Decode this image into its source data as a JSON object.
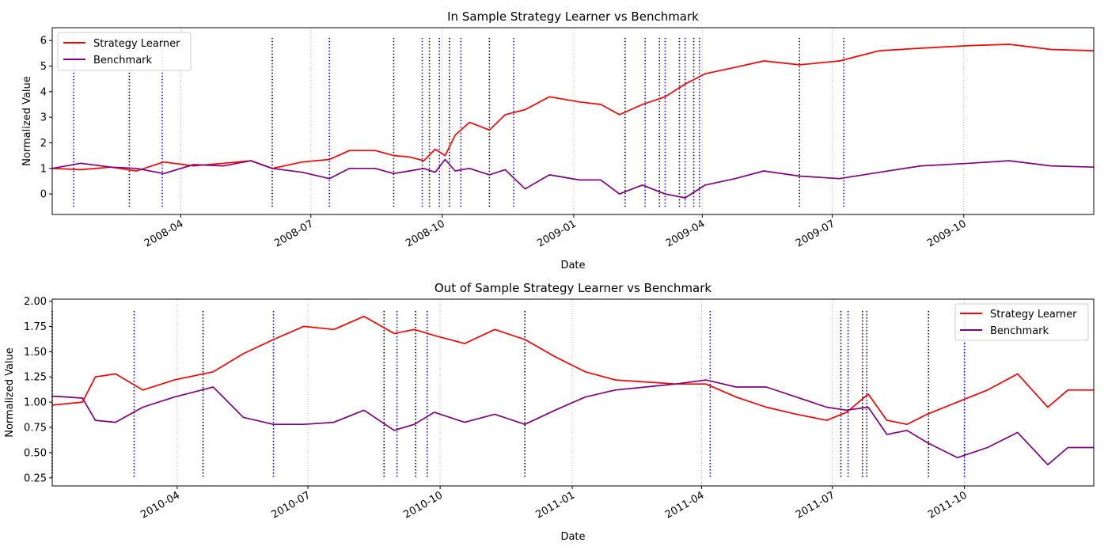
{
  "chart_data": [
    {
      "type": "line",
      "title": "In Sample Strategy Learner vs Benchmark",
      "xlabel": "Date",
      "ylabel": "Normalized Value",
      "xlim": [
        "2008-01-02",
        "2009-12-31"
      ],
      "ylim": [
        -0.8,
        6.5
      ],
      "yticks": [
        0,
        1,
        2,
        3,
        4,
        5,
        6
      ],
      "xticks": [
        {
          "date": "2008-04-01",
          "label": "2008-04"
        },
        {
          "date": "2008-07-01",
          "label": "2008-07"
        },
        {
          "date": "2008-10-01",
          "label": "2008-10"
        },
        {
          "date": "2009-01-01",
          "label": "2009-01"
        },
        {
          "date": "2009-04-01",
          "label": "2009-04"
        },
        {
          "date": "2009-07-01",
          "label": "2009-07"
        },
        {
          "date": "2009-10-01",
          "label": "2009-10"
        }
      ],
      "grid": "vertical dotted",
      "legend_position": "upper-left",
      "series": [
        {
          "name": "Strategy Learner",
          "color": "#ff0000",
          "points": [
            [
              "2008-01-02",
              1.0
            ],
            [
              "2008-01-22",
              0.95
            ],
            [
              "2008-02-12",
              1.05
            ],
            [
              "2008-03-01",
              0.9
            ],
            [
              "2008-03-20",
              1.25
            ],
            [
              "2008-04-10",
              1.1
            ],
            [
              "2008-05-01",
              1.2
            ],
            [
              "2008-05-20",
              1.3
            ],
            [
              "2008-06-04",
              1.0
            ],
            [
              "2008-06-25",
              1.25
            ],
            [
              "2008-07-14",
              1.35
            ],
            [
              "2008-07-28",
              1.7
            ],
            [
              "2008-08-15",
              1.7
            ],
            [
              "2008-08-28",
              1.5
            ],
            [
              "2008-09-08",
              1.45
            ],
            [
              "2008-09-18",
              1.3
            ],
            [
              "2008-09-26",
              1.75
            ],
            [
              "2008-10-03",
              1.5
            ],
            [
              "2008-10-10",
              2.3
            ],
            [
              "2008-10-20",
              2.8
            ],
            [
              "2008-11-03",
              2.5
            ],
            [
              "2008-11-14",
              3.1
            ],
            [
              "2008-11-28",
              3.3
            ],
            [
              "2008-12-15",
              3.8
            ],
            [
              "2009-01-05",
              3.6
            ],
            [
              "2009-01-20",
              3.5
            ],
            [
              "2009-02-02",
              3.1
            ],
            [
              "2009-02-18",
              3.5
            ],
            [
              "2009-03-06",
              3.8
            ],
            [
              "2009-03-20",
              4.3
            ],
            [
              "2009-04-03",
              4.7
            ],
            [
              "2009-04-24",
              4.95
            ],
            [
              "2009-05-14",
              5.2
            ],
            [
              "2009-06-08",
              5.05
            ],
            [
              "2009-07-06",
              5.2
            ],
            [
              "2009-08-03",
              5.6
            ],
            [
              "2009-09-01",
              5.7
            ],
            [
              "2009-10-05",
              5.8
            ],
            [
              "2009-11-02",
              5.85
            ],
            [
              "2009-12-01",
              5.65
            ],
            [
              "2009-12-31",
              5.6
            ]
          ]
        },
        {
          "name": "Benchmark",
          "color": "#800080",
          "points": [
            [
              "2008-01-02",
              1.0
            ],
            [
              "2008-01-22",
              1.2
            ],
            [
              "2008-02-12",
              1.05
            ],
            [
              "2008-03-01",
              1.0
            ],
            [
              "2008-03-20",
              0.8
            ],
            [
              "2008-04-10",
              1.15
            ],
            [
              "2008-05-01",
              1.1
            ],
            [
              "2008-05-20",
              1.3
            ],
            [
              "2008-06-04",
              1.0
            ],
            [
              "2008-06-25",
              0.85
            ],
            [
              "2008-07-14",
              0.6
            ],
            [
              "2008-07-28",
              1.0
            ],
            [
              "2008-08-15",
              1.0
            ],
            [
              "2008-08-28",
              0.8
            ],
            [
              "2008-09-08",
              0.9
            ],
            [
              "2008-09-18",
              1.0
            ],
            [
              "2008-09-26",
              0.85
            ],
            [
              "2008-10-03",
              1.35
            ],
            [
              "2008-10-10",
              0.9
            ],
            [
              "2008-10-20",
              1.0
            ],
            [
              "2008-11-03",
              0.75
            ],
            [
              "2008-11-14",
              0.95
            ],
            [
              "2008-11-28",
              0.2
            ],
            [
              "2008-12-15",
              0.75
            ],
            [
              "2009-01-05",
              0.55
            ],
            [
              "2009-01-20",
              0.55
            ],
            [
              "2009-02-02",
              0.0
            ],
            [
              "2009-02-18",
              0.35
            ],
            [
              "2009-03-06",
              0.0
            ],
            [
              "2009-03-20",
              -0.15
            ],
            [
              "2009-04-03",
              0.35
            ],
            [
              "2009-04-24",
              0.6
            ],
            [
              "2009-05-14",
              0.9
            ],
            [
              "2009-06-08",
              0.7
            ],
            [
              "2009-07-06",
              0.6
            ],
            [
              "2009-08-03",
              0.85
            ],
            [
              "2009-09-01",
              1.1
            ],
            [
              "2009-10-05",
              1.2
            ],
            [
              "2009-11-02",
              1.3
            ],
            [
              "2009-12-01",
              1.1
            ],
            [
              "2009-12-31",
              1.05
            ]
          ]
        }
      ],
      "vlines": {
        "black_dotted": [
          "2008-02-25",
          "2008-06-04",
          "2008-08-28",
          "2008-09-22",
          "2008-10-06",
          "2008-11-03",
          "2009-02-06",
          "2009-03-02",
          "2009-03-16",
          "2009-03-26",
          "2009-06-08"
        ],
        "blue_dotted": [
          "2008-01-17",
          "2008-03-19",
          "2008-07-14",
          "2008-09-17",
          "2008-09-29",
          "2008-10-14",
          "2008-11-20",
          "2009-02-20",
          "2009-03-06",
          "2009-03-20",
          "2009-03-30",
          "2009-07-09"
        ],
        "ymin": -0.5,
        "ymax": 6.1
      }
    },
    {
      "type": "line",
      "title": "Out of Sample Strategy Learner vs Benchmark",
      "xlabel": "Date",
      "ylabel": "Normalized Value",
      "xlim": [
        "2010-01-04",
        "2011-12-30"
      ],
      "ylim": [
        0.17,
        2.02
      ],
      "yticks": [
        0.25,
        0.5,
        0.75,
        1.0,
        1.25,
        1.5,
        1.75,
        2.0
      ],
      "ytick_labels": [
        "0.25",
        "0.50",
        "0.75",
        "1.00",
        "1.25",
        "1.50",
        "1.75",
        "2.00"
      ],
      "xticks": [
        {
          "date": "2010-04-01",
          "label": "2010-04"
        },
        {
          "date": "2010-07-01",
          "label": "2010-07"
        },
        {
          "date": "2010-10-01",
          "label": "2010-10"
        },
        {
          "date": "2011-01-01",
          "label": "2011-01"
        },
        {
          "date": "2011-04-01",
          "label": "2011-04"
        },
        {
          "date": "2011-07-01",
          "label": "2011-07"
        },
        {
          "date": "2011-10-01",
          "label": "2011-10"
        }
      ],
      "grid": "vertical dotted",
      "legend_position": "upper-right",
      "series": [
        {
          "name": "Strategy Learner",
          "color": "#ff0000",
          "points": [
            [
              "2010-01-04",
              0.97
            ],
            [
              "2010-01-25",
              1.0
            ],
            [
              "2010-02-03",
              1.25
            ],
            [
              "2010-02-17",
              1.28
            ],
            [
              "2010-03-08",
              1.12
            ],
            [
              "2010-03-30",
              1.22
            ],
            [
              "2010-04-26",
              1.3
            ],
            [
              "2010-05-17",
              1.48
            ],
            [
              "2010-06-07",
              1.62
            ],
            [
              "2010-06-28",
              1.75
            ],
            [
              "2010-07-19",
              1.72
            ],
            [
              "2010-08-09",
              1.85
            ],
            [
              "2010-08-30",
              1.68
            ],
            [
              "2010-09-13",
              1.72
            ],
            [
              "2010-09-27",
              1.66
            ],
            [
              "2010-10-18",
              1.58
            ],
            [
              "2010-11-08",
              1.72
            ],
            [
              "2010-11-29",
              1.62
            ],
            [
              "2010-12-20",
              1.45
            ],
            [
              "2011-01-10",
              1.3
            ],
            [
              "2011-01-31",
              1.22
            ],
            [
              "2011-02-21",
              1.2
            ],
            [
              "2011-03-14",
              1.18
            ],
            [
              "2011-04-04",
              1.18
            ],
            [
              "2011-04-25",
              1.05
            ],
            [
              "2011-05-16",
              0.95
            ],
            [
              "2011-06-06",
              0.88
            ],
            [
              "2011-06-27",
              0.82
            ],
            [
              "2011-07-11",
              0.9
            ],
            [
              "2011-07-26",
              1.08
            ],
            [
              "2011-08-08",
              0.82
            ],
            [
              "2011-08-22",
              0.78
            ],
            [
              "2011-09-05",
              0.88
            ],
            [
              "2011-09-26",
              1.0
            ],
            [
              "2011-10-17",
              1.12
            ],
            [
              "2011-11-07",
              1.28
            ],
            [
              "2011-11-28",
              0.95
            ],
            [
              "2011-12-12",
              1.12
            ],
            [
              "2011-12-30",
              1.12
            ]
          ]
        },
        {
          "name": "Benchmark",
          "color": "#800080",
          "points": [
            [
              "2010-01-04",
              1.06
            ],
            [
              "2010-01-25",
              1.04
            ],
            [
              "2010-02-03",
              0.82
            ],
            [
              "2010-02-17",
              0.8
            ],
            [
              "2010-03-08",
              0.95
            ],
            [
              "2010-03-30",
              1.05
            ],
            [
              "2010-04-26",
              1.15
            ],
            [
              "2010-05-17",
              0.85
            ],
            [
              "2010-06-07",
              0.78
            ],
            [
              "2010-06-28",
              0.78
            ],
            [
              "2010-07-19",
              0.8
            ],
            [
              "2010-08-09",
              0.92
            ],
            [
              "2010-08-30",
              0.72
            ],
            [
              "2010-09-13",
              0.78
            ],
            [
              "2010-09-27",
              0.9
            ],
            [
              "2010-10-18",
              0.8
            ],
            [
              "2010-11-08",
              0.88
            ],
            [
              "2010-11-29",
              0.78
            ],
            [
              "2010-12-20",
              0.92
            ],
            [
              "2011-01-10",
              1.05
            ],
            [
              "2011-01-31",
              1.12
            ],
            [
              "2011-02-21",
              1.15
            ],
            [
              "2011-03-14",
              1.18
            ],
            [
              "2011-04-04",
              1.22
            ],
            [
              "2011-04-25",
              1.15
            ],
            [
              "2011-05-16",
              1.15
            ],
            [
              "2011-06-06",
              1.05
            ],
            [
              "2011-06-27",
              0.95
            ],
            [
              "2011-07-11",
              0.92
            ],
            [
              "2011-07-26",
              0.95
            ],
            [
              "2011-08-08",
              0.68
            ],
            [
              "2011-08-22",
              0.72
            ],
            [
              "2011-09-05",
              0.6
            ],
            [
              "2011-09-26",
              0.45
            ],
            [
              "2011-10-17",
              0.55
            ],
            [
              "2011-11-07",
              0.7
            ],
            [
              "2011-11-28",
              0.38
            ],
            [
              "2011-12-12",
              0.55
            ],
            [
              "2011-12-30",
              0.55
            ]
          ]
        }
      ],
      "vlines": {
        "black_dotted": [
          "2010-01-04",
          "2010-04-19",
          "2010-08-23",
          "2010-09-14",
          "2010-11-29",
          "2011-07-07",
          "2011-07-22",
          "2011-09-06"
        ],
        "blue_dotted": [
          "2010-03-02",
          "2010-06-07",
          "2010-09-01",
          "2010-09-22",
          "2011-04-07",
          "2011-07-12",
          "2011-07-25",
          "2011-10-01"
        ],
        "ymin": 0.26,
        "ymax": 1.92
      }
    }
  ]
}
